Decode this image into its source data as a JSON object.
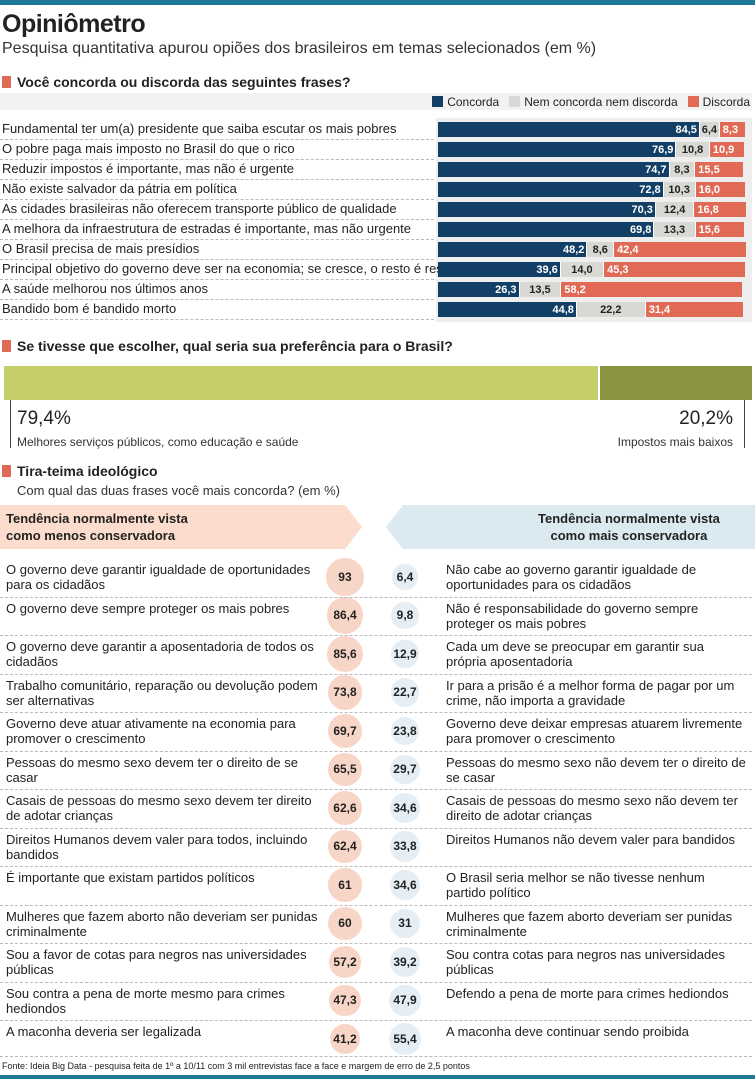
{
  "title": "Opiniômetro",
  "subtitle": "Pesquisa quantitativa apurou opiões dos brasileiros em temas selecionados (em %)",
  "colors": {
    "concorda": "#123f66",
    "neutro": "#d8d8d4",
    "discorda": "#e06a55",
    "pref_a": "#c5cc6a",
    "pref_b": "#8a9440"
  },
  "chart_data": [
    {
      "type": "bar",
      "stacked": true,
      "orientation": "horizontal",
      "title": "Você concorda ou discorda das seguintes frases?",
      "legend": "top-right",
      "series_names": [
        "Concorda",
        "Nem concorda nem discorda",
        "Discorda"
      ],
      "categories": [
        "Fundamental ter um(a) presidente que saiba escutar os mais pobres",
        "O pobre paga mais imposto no Brasil do que o rico",
        "Reduzir impostos é importante, mas não é urgente",
        "Não existe salvador da pátria em política",
        "As cidades brasileiras não oferecem transporte público de qualidade",
        "A melhora da infraestrutura de estradas é importante, mas não urgente",
        "O Brasil precisa de mais presídios",
        "Principal objetivo do governo deve ser na economia; se cresce, o resto é resolvido",
        "A saúde melhorou nos últimos anos",
        "Bandido bom é bandido morto"
      ],
      "series": [
        {
          "name": "Concorda",
          "values": [
            "84,5",
            "76,9",
            "74,7",
            "72,8",
            "70,3",
            "69,8",
            "48,2",
            "39,6",
            "26,3",
            "44,8"
          ]
        },
        {
          "name": "Nem concorda nem discorda",
          "values": [
            "6,4",
            "10,8",
            "8,3",
            "10,3",
            "12,4",
            "13,3",
            "8,6",
            "14,0",
            "13,5",
            "22,2"
          ]
        },
        {
          "name": "Discorda",
          "values": [
            "8,3",
            "10,9",
            "15,5",
            "16,0",
            "16,8",
            "15,6",
            "42,4",
            "45,3",
            "58,2",
            "31,4"
          ]
        }
      ]
    },
    {
      "type": "bar",
      "stacked": true,
      "title": "Se tivesse que escolher, qual seria sua preferência para o Brasil?",
      "items": [
        {
          "label": "Melhores serviços públicos, como educação e saúde",
          "value": "79,4%",
          "num": 79.4
        },
        {
          "label": "Impostos mais baixos",
          "value": "20,2%",
          "num": 20.2
        }
      ]
    },
    {
      "type": "table",
      "title": "Tira-teima ideológico",
      "subtitle": "Com qual das duas frases você mais concorda? (em %)",
      "left_header": [
        "Tendência normalmente vista",
        "como menos conservadora"
      ],
      "right_header": [
        "Tendência normalmente vista",
        "como mais conservadora"
      ],
      "rows": [
        {
          "left": "O governo deve garantir igualdade de oportunidades para os cidadãos",
          "lv": "93",
          "rv": "6,4",
          "right": "Não cabe ao governo garantir igualdade de oportunidades para os cidadãos"
        },
        {
          "left": "O governo deve sempre proteger os mais pobres",
          "lv": "86,4",
          "rv": "9,8",
          "right": "Não é responsabilidade do governo sempre proteger os mais pobres"
        },
        {
          "left": "O governo deve garantir a aposentadoria de todos os cidadãos",
          "lv": "85,6",
          "rv": "12,9",
          "right": "Cada um deve se preocupar em garantir sua própria aposentadoria"
        },
        {
          "left": "Trabalho comunitário, reparação ou devolução podem ser alternativas",
          "lv": "73,8",
          "rv": "22,7",
          "right": "Ir para a prisão é a melhor forma de pagar por um crime, não importa a gravidade"
        },
        {
          "left": "Governo deve atuar ativamente na economia para promover o crescimento",
          "lv": "69,7",
          "rv": "23,8",
          "right": "Governo deve deixar empresas atuarem livremente para promover o crescimento"
        },
        {
          "left": "Pessoas do mesmo sexo devem ter o direito de se casar",
          "lv": "65,5",
          "rv": "29,7",
          "right": "Pessoas do mesmo sexo não devem ter o direito de se casar"
        },
        {
          "left": "Casais de pessoas do mesmo sexo devem ter direito de adotar crianças",
          "lv": "62,6",
          "rv": "34,6",
          "right": "Casais de pessoas do mesmo sexo não devem ter direito de adotar crianças"
        },
        {
          "left": "Direitos Humanos devem valer para todos, incluindo bandidos",
          "lv": "62,4",
          "rv": "33,8",
          "right": "Direitos Humanos não devem valer para bandidos"
        },
        {
          "left": "É importante que existam partidos políticos",
          "lv": "61",
          "rv": "34,6",
          "right": "O Brasil seria melhor se não tivesse nenhum partido político"
        },
        {
          "left": "Mulheres que fazem aborto não deveriam ser punidas criminalmente",
          "lv": "60",
          "rv": "31",
          "right": "Mulheres que fazem aborto deveriam ser punidas criminalmente"
        },
        {
          "left": "Sou a favor de cotas para negros nas universidades públicas",
          "lv": "57,2",
          "rv": "39,2",
          "right": "Sou contra cotas para negros nas universidades públicas"
        },
        {
          "left": "Sou contra a pena de morte mesmo para crimes hediondos",
          "lv": "47,3",
          "rv": "47,9",
          "right": "Defendo a pena de morte para crimes hediondos"
        },
        {
          "left": "A maconha deveria ser legalizada",
          "lv": "41,2",
          "rv": "55,4",
          "right": "A maconha deve continuar sendo proibida"
        }
      ]
    }
  ],
  "source": "Fonte: Ideia Big Data - pesquisa feita de 1º a 10/11 com 3 mil entrevistas face a face e margem de erro de 2,5 pontos"
}
